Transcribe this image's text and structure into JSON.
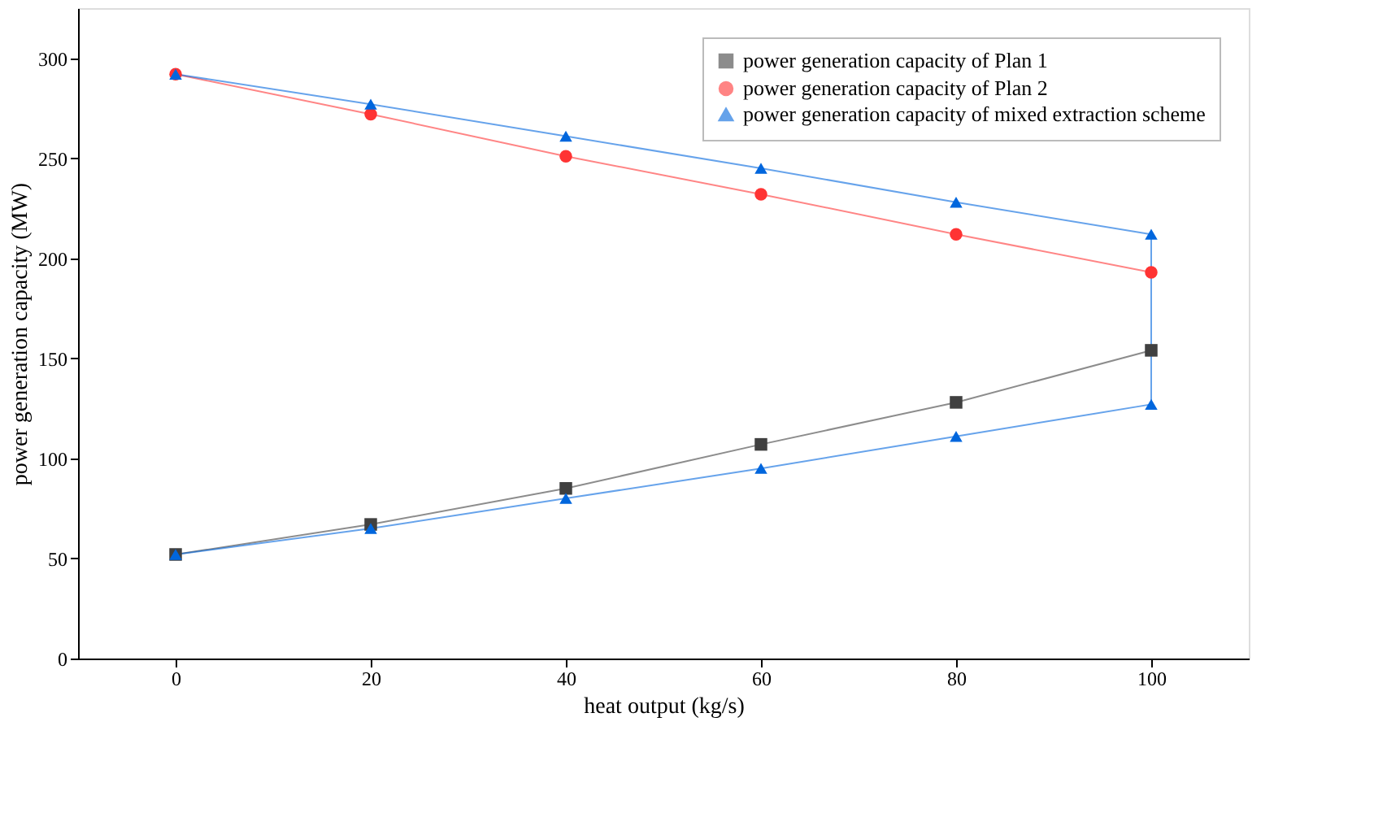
{
  "chart_data": {
    "type": "line",
    "xlabel": "heat output (kg/s)",
    "ylabel": "power generation capacity (MW)",
    "xlim": [
      -10,
      110
    ],
    "xticks": [
      0,
      20,
      40,
      60,
      80,
      100
    ],
    "ylim": [
      0,
      325
    ],
    "yticks": [
      0,
      50,
      100,
      150,
      200,
      250,
      300
    ],
    "grid": false,
    "legend": "top right",
    "series": [
      {
        "name": "power generation capacity of Plan 1",
        "color": "#404040",
        "marker": "square",
        "x": [
          0,
          20,
          40,
          60,
          80,
          100
        ],
        "values": [
          52,
          67,
          85,
          107,
          128,
          154
        ]
      },
      {
        "name": "power generation capacity of Plan 2",
        "color": "#ff3333",
        "marker": "circle",
        "x": [
          0,
          20,
          40,
          60,
          80,
          100
        ],
        "values": [
          292,
          272,
          251,
          232,
          212,
          193
        ]
      },
      {
        "name": "power generation capacity of mixed extraction scheme",
        "color": "#0066dd",
        "marker": "triangle",
        "x": [
          0,
          20,
          40,
          60,
          80,
          100,
          100,
          80,
          60,
          40,
          20,
          0
        ],
        "values": [
          292,
          277,
          261,
          245,
          228,
          212,
          127,
          111,
          95,
          80,
          65,
          52
        ]
      }
    ]
  }
}
